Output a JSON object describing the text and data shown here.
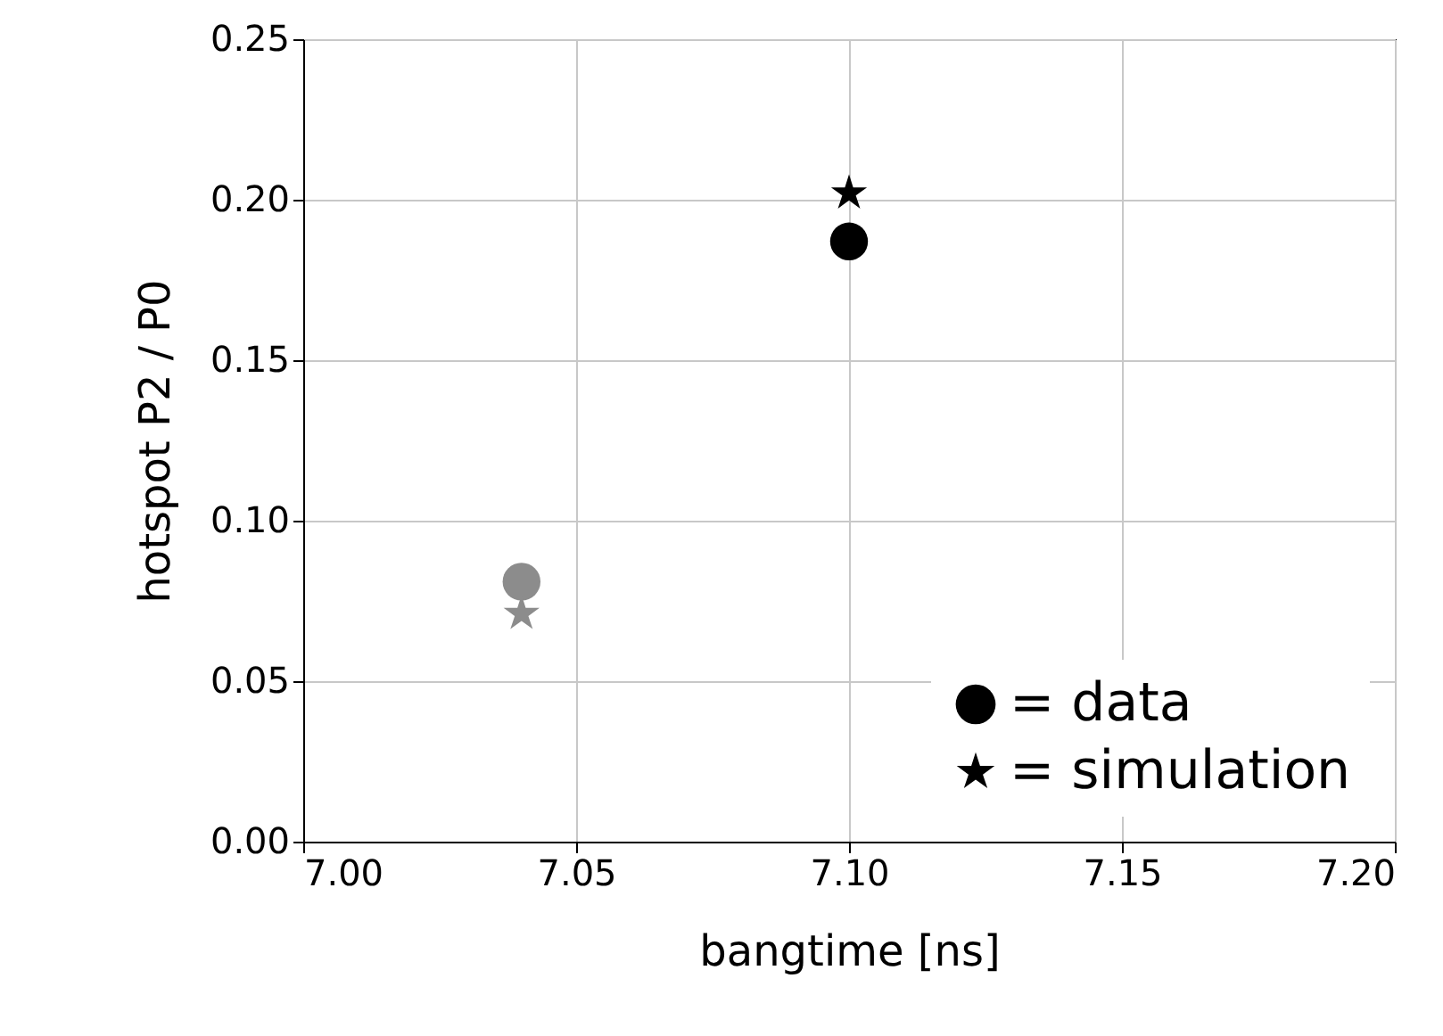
{
  "chart_data": {
    "type": "scatter",
    "xlabel": "bangtime [ns]",
    "ylabel": "hotspot P2 / P0",
    "xlim": [
      7.0,
      7.2
    ],
    "xticks": [
      {
        "value": 7.0,
        "label": "7.00"
      },
      7.05,
      {
        "value": 7.1,
        "label": "7.10"
      },
      7.15,
      {
        "value": 7.2,
        "label": "7.20"
      }
    ],
    "ylim": [
      0,
      0.25
    ],
    "yticks": [
      {
        "value": 0,
        "label": "0.00"
      },
      0.05,
      {
        "value": 0.1,
        "label": "0.10"
      },
      0.15,
      {
        "value": 0.2,
        "label": "0.20"
      },
      0.25
    ],
    "grid": true,
    "legend": "bottom right",
    "x": [
      7.04,
      7.1
    ],
    "series": [
      {
        "name": "= data",
        "marker": "circle",
        "color": "#000000",
        "values": [
          0.081,
          0.187
        ],
        "colors": [
          "#8c8c8c",
          "#000000"
        ]
      },
      {
        "name": "= simulation",
        "marker": "star",
        "color": "#000000",
        "values": [
          0.071,
          0.202
        ],
        "colors": [
          "#8c8c8c",
          "#000000"
        ]
      }
    ]
  }
}
